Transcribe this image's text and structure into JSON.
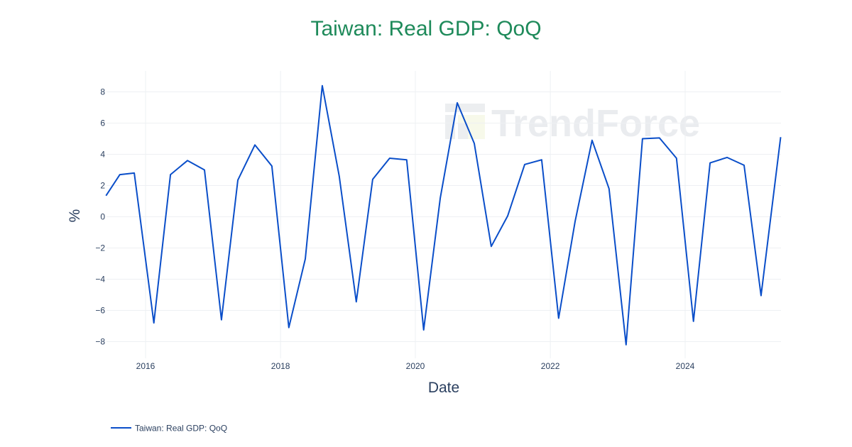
{
  "chart_data": {
    "type": "line",
    "title": "Taiwan: Real GDP: QoQ",
    "xlabel": "Date",
    "ylabel": "%",
    "x_ticks": [
      "2016",
      "2018",
      "2020",
      "2022",
      "2024"
    ],
    "y_ticks": [
      "8",
      "6",
      "4",
      "2",
      "0",
      "−2",
      "−4",
      "−6",
      "−8"
    ],
    "ylim": [
      -9,
      9.4
    ],
    "xlim": [
      "2015-06-01",
      "2025-06-01"
    ],
    "grid": true,
    "legend_position": "bottom-left",
    "series": [
      {
        "name": "Taiwan: Real GDP: QoQ",
        "color": "#0a4ec9",
        "points": [
          [
            "2015-06-01",
            1.35
          ],
          [
            "2015-08-15",
            2.7
          ],
          [
            "2015-11-01",
            2.8
          ],
          [
            "2016-02-15",
            -6.8
          ],
          [
            "2016-05-15",
            2.7
          ],
          [
            "2016-08-15",
            3.6
          ],
          [
            "2016-11-15",
            3.0
          ],
          [
            "2017-02-15",
            -6.6
          ],
          [
            "2017-05-15",
            2.35
          ],
          [
            "2017-08-15",
            4.6
          ],
          [
            "2017-11-15",
            3.25
          ],
          [
            "2018-02-15",
            -7.1
          ],
          [
            "2018-05-15",
            -2.7
          ],
          [
            "2018-08-15",
            8.4
          ],
          [
            "2018-11-15",
            2.6
          ],
          [
            "2019-02-15",
            -5.45
          ],
          [
            "2019-05-15",
            2.4
          ],
          [
            "2019-08-15",
            3.75
          ],
          [
            "2019-11-15",
            3.65
          ],
          [
            "2020-02-15",
            -7.25
          ],
          [
            "2020-05-15",
            1.2
          ],
          [
            "2020-08-15",
            7.3
          ],
          [
            "2020-11-15",
            4.7
          ],
          [
            "2021-02-15",
            -1.9
          ],
          [
            "2021-05-15",
            0.05
          ],
          [
            "2021-08-15",
            3.35
          ],
          [
            "2021-11-15",
            3.65
          ],
          [
            "2022-02-15",
            -6.5
          ],
          [
            "2022-05-15",
            -0.3
          ],
          [
            "2022-08-15",
            4.9
          ],
          [
            "2022-11-15",
            1.8
          ],
          [
            "2023-02-15",
            -8.2
          ],
          [
            "2023-05-15",
            5.0
          ],
          [
            "2023-08-15",
            5.05
          ],
          [
            "2023-11-15",
            3.75
          ],
          [
            "2024-02-15",
            -6.7
          ],
          [
            "2024-05-15",
            3.45
          ],
          [
            "2024-08-15",
            3.8
          ],
          [
            "2024-11-15",
            3.3
          ],
          [
            "2025-02-15",
            -5.05
          ],
          [
            "2025-06-01",
            5.1
          ]
        ]
      }
    ]
  },
  "watermark": {
    "text": "TrendForce"
  }
}
